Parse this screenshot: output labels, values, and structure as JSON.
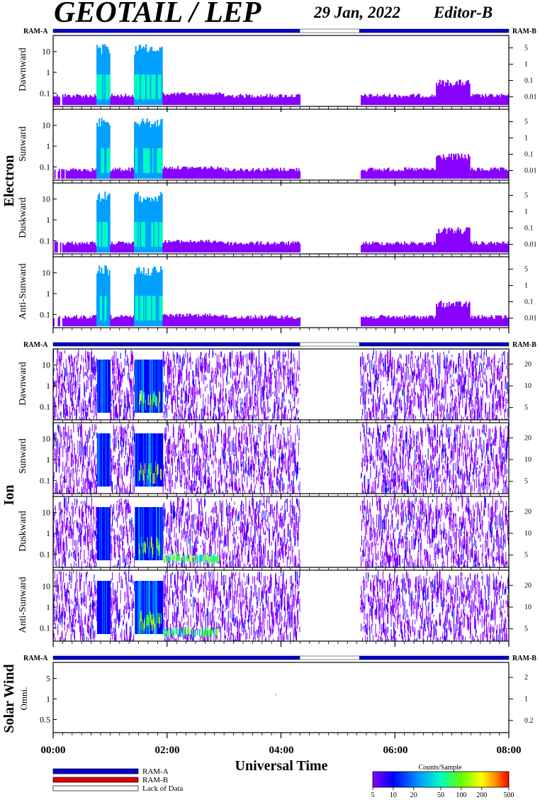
{
  "header": {
    "title": "GEOTAIL / LEP",
    "date": "29 Jan, 2022",
    "editor": "Editor-B"
  },
  "colors": {
    "ram_a": "#0000cc",
    "ram_b": "#dd0000",
    "lack_of_data": "#ffffff",
    "panel_frame": "#000000",
    "colorbar": [
      "#8800ff",
      "#0000ff",
      "#00a0ff",
      "#00ffc0",
      "#60ff00",
      "#ffff00",
      "#ff9000",
      "#ff0000"
    ]
  },
  "groups": [
    {
      "name": "Electron",
      "ram_left": "RAM-A",
      "ram_right": "RAM-B"
    },
    {
      "name": "Ion",
      "ram_left": "RAM-A",
      "ram_right": "RAM-B"
    },
    {
      "name": "Solar Wind",
      "ram_left": "RAM-A",
      "ram_right": "RAM-B"
    }
  ],
  "chart_data": {
    "type": "heatmap",
    "xlabel": "Universal Time",
    "x_tick_labels": [
      "00:00",
      "02:00",
      "04:00",
      "06:00",
      "08:00"
    ],
    "x_range_hours": [
      0,
      8
    ],
    "data_gap_hours": [
      4.33,
      5.38
    ],
    "ram_bar": [
      {
        "mode": "RAM-A",
        "start_hours": 0.0,
        "end_hours": 4.33
      },
      {
        "mode": "Lack of Data",
        "start_hours": 4.33,
        "end_hours": 5.38
      },
      {
        "mode": "RAM-A",
        "start_hours": 5.38,
        "end_hours": 8.0
      }
    ],
    "panels": [
      {
        "group": "Electron",
        "ylabel": "Dawnward",
        "left_scale": "log",
        "left_ticks": [
          "10",
          "1",
          "0.1"
        ],
        "right_ticks": [
          "5",
          "1",
          "0.1",
          "0.01"
        ],
        "kind": "electron"
      },
      {
        "group": "Electron",
        "ylabel": "Sunward",
        "left_scale": "log",
        "left_ticks": [
          "10",
          "1",
          "0.1"
        ],
        "right_ticks": [
          "5",
          "1",
          "0.1",
          "0.01"
        ],
        "kind": "electron"
      },
      {
        "group": "Electron",
        "ylabel": "Duskward",
        "left_scale": "log",
        "left_ticks": [
          "10",
          "1",
          "0.1"
        ],
        "right_ticks": [
          "5",
          "1",
          "0.1",
          "0.01"
        ],
        "kind": "electron"
      },
      {
        "group": "Electron",
        "ylabel": "Anti-Sunward",
        "left_scale": "log",
        "left_ticks": [
          "10",
          "1",
          "0.1"
        ],
        "right_ticks": [
          "5",
          "1",
          "0.1",
          "0.01"
        ],
        "kind": "electron"
      },
      {
        "group": "Ion",
        "ylabel": "Dawnward",
        "left_scale": "log",
        "left_ticks": [
          "10",
          "1",
          "0.1"
        ],
        "right_ticks": [
          "20",
          "10",
          "5"
        ],
        "kind": "ion"
      },
      {
        "group": "Ion",
        "ylabel": "Sunward",
        "left_scale": "log",
        "left_ticks": [
          "10",
          "1",
          "0.1"
        ],
        "right_ticks": [
          "20",
          "10",
          "5"
        ],
        "kind": "ion"
      },
      {
        "group": "Ion",
        "ylabel": "Duskward",
        "left_scale": "log",
        "left_ticks": [
          "10",
          "1",
          "0.1"
        ],
        "right_ticks": [
          "20",
          "10",
          "5"
        ],
        "kind": "ion"
      },
      {
        "group": "Ion",
        "ylabel": "Anti-Sunward",
        "left_scale": "log",
        "left_ticks": [
          "10",
          "1",
          "0.1"
        ],
        "right_ticks": [
          "20",
          "10",
          "5"
        ],
        "kind": "ion"
      },
      {
        "group": "Solar Wind",
        "ylabel": "Omni.",
        "left_scale": "log",
        "left_ticks": [
          "5",
          "1",
          "0.5"
        ],
        "right_ticks": [
          "2",
          "1",
          "0.2"
        ],
        "kind": "sw"
      }
    ],
    "legend": {
      "items": [
        "RAM-A",
        "RAM-B",
        "Lack of Data"
      ]
    },
    "colorbar": {
      "title": "Counts/Sample",
      "scale": "log",
      "range": [
        5,
        500
      ],
      "tick_labels": [
        "5",
        "10",
        "20",
        "50",
        "100",
        "200",
        "500"
      ],
      "tick_values": [
        5,
        10,
        20,
        50,
        100,
        200,
        500
      ]
    }
  }
}
